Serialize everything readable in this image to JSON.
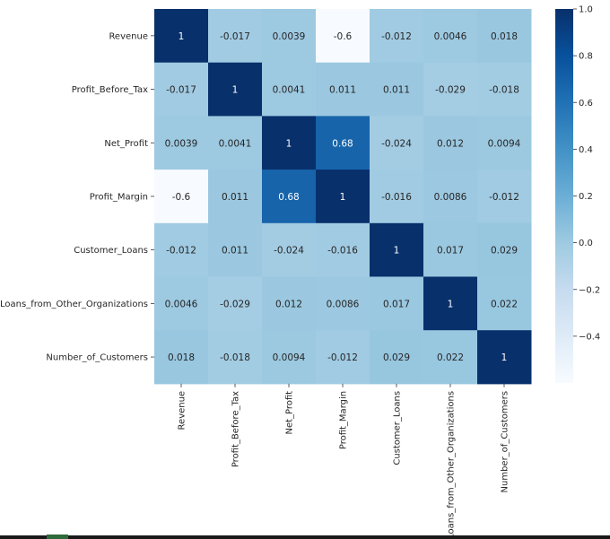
{
  "chart_data": {
    "type": "heatmap",
    "title": "",
    "xlabel": "",
    "ylabel": "",
    "labels": [
      "Revenue",
      "Profit_Before_Tax",
      "Net_Profit",
      "Profit_Margin",
      "Customer_Loans",
      "Loans_from_Other_Organizations",
      "Number_of_Customers"
    ],
    "matrix": [
      [
        1,
        -0.017,
        0.0039,
        -0.6,
        -0.012,
        0.0046,
        0.018
      ],
      [
        -0.017,
        1,
        0.0041,
        0.011,
        0.011,
        -0.029,
        -0.018
      ],
      [
        0.0039,
        0.0041,
        1,
        0.68,
        -0.024,
        0.012,
        0.0094
      ],
      [
        -0.6,
        0.011,
        0.68,
        1,
        -0.016,
        0.0086,
        -0.012
      ],
      [
        -0.012,
        0.011,
        -0.024,
        -0.016,
        1,
        0.017,
        0.029
      ],
      [
        0.0046,
        -0.029,
        0.012,
        0.0086,
        0.017,
        1,
        0.022
      ],
      [
        0.018,
        -0.018,
        0.0094,
        -0.012,
        0.029,
        0.022,
        1
      ]
    ],
    "annotations": [
      [
        "1",
        "-0.017",
        "0.0039",
        "-0.6",
        "-0.012",
        "0.0046",
        "0.018"
      ],
      [
        "-0.017",
        "1",
        "0.0041",
        "0.011",
        "0.011",
        "-0.029",
        "-0.018"
      ],
      [
        "0.0039",
        "0.0041",
        "1",
        "0.68",
        "-0.024",
        "0.012",
        "0.0094"
      ],
      [
        "-0.6",
        "0.011",
        "0.68",
        "1",
        "-0.016",
        "0.0086",
        "-0.012"
      ],
      [
        "-0.012",
        "0.011",
        "-0.024",
        "-0.016",
        "1",
        "0.017",
        "0.029"
      ],
      [
        "0.0046",
        "-0.029",
        "0.012",
        "0.0086",
        "0.017",
        "1",
        "0.022"
      ],
      [
        "0.018",
        "-0.018",
        "0.0094",
        "-0.012",
        "0.029",
        "0.022",
        "1"
      ]
    ],
    "value_range": [
      -0.6,
      1.0
    ],
    "colormap": "Blues",
    "colorbar": {
      "ticks": [
        1.0,
        0.8,
        0.6,
        0.4,
        0.2,
        0.0,
        -0.2,
        -0.4
      ],
      "tick_labels": [
        "1.0",
        "0.8",
        "0.6",
        "0.4",
        "0.2",
        "0.0",
        "−0.2",
        "−0.4"
      ],
      "placement": "right"
    },
    "grid": false
  },
  "colors": {
    "cmap_stops": [
      "#f7fbff",
      "#deebf7",
      "#c6dbef",
      "#9ecae1",
      "#6baed6",
      "#4292c6",
      "#2171b5",
      "#08519c",
      "#08306b"
    ],
    "text_dark": "#262626",
    "text_light": "#ffffff"
  }
}
